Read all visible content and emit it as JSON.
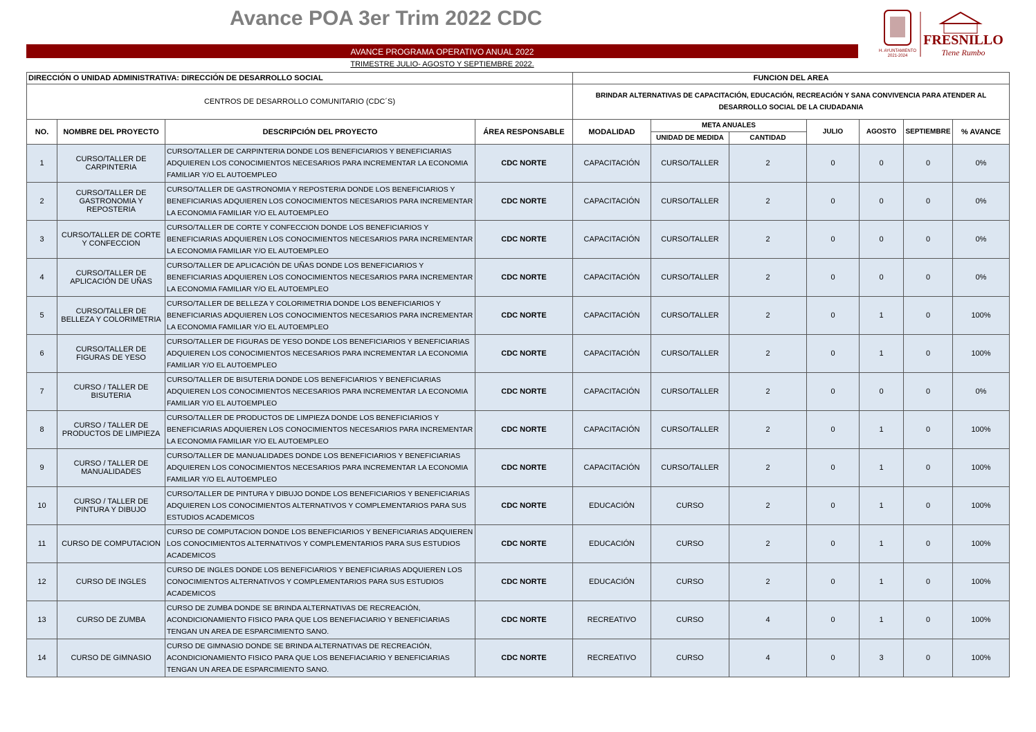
{
  "header": {
    "title": "Avance POA 3er Trim 2022 CDC",
    "logo": {
      "council": "H. AYUNTAMIENTO",
      "period": "2021-2024",
      "city": "FRESNILLO",
      "slogan": "Tiene Rumbo"
    },
    "banner": "AVANCE PROGRAMA OPERATIVO ANUAL 2022",
    "subtitle": "TRIMESTRE JULIO- AGOSTO Y SEPTIEMBRE 2022."
  },
  "info": {
    "direction": "DIRECCIÓN O UNIDAD ADMINISTRATIVA: DIRECCIÓN DE DESARROLLO SOCIAL",
    "function_label": "FUNCION DEL AREA",
    "program": "CENTROS DE DESARROLLO COMUNITARIO (CDC´S)",
    "function": "BRINDAR ALTERNATIVAS DE CAPACITACIÓN, EDUCACIÓN, RECREACIÓN Y SANA CONVIVENCIA PARA ATENDER AL DESARROLLO SOCIAL DE LA CIUDADANIA"
  },
  "table": {
    "columns": {
      "no": "NO.",
      "name": "NOMBRE DEL PROYECTO",
      "description": "DESCRIPCIÓN DEL PROYECTO",
      "area": "ÁREA RESPONSABLE",
      "mode": "MODALIDAD",
      "goals": "META ANUALES",
      "unit": "UNIDAD DE MEDIDA",
      "quantity": "CANTIDAD",
      "july": "JULIO",
      "august": "AGOSTO",
      "september": "SEPTIEMBRE",
      "progress": "% AVANCE"
    },
    "rows": [
      {
        "no": 1,
        "name": "CURSO/TALLER  DE CARPINTERIA",
        "description": "CURSO/TALLER DE CARPINTERIA DONDE LOS BENEFICIARIOS Y BENEFICIARIAS ADQUIEREN LOS CONOCIMIENTOS NECESARIOS PARA INCREMENTAR LA ECONOMIA FAMILIAR Y/O EL AUTOEMPLEO",
        "area": "CDC NORTE",
        "mode": "CAPACITACIÓN",
        "unit": "CURSO/TALLER",
        "quantity": 2,
        "july": 0,
        "august": 0,
        "september": 0,
        "progress": "0%"
      },
      {
        "no": 2,
        "name": "CURSO/TALLER  DE GASTRONOMIA Y REPOSTERIA",
        "description": "CURSO/TALLER DE GASTRONOMIA  Y REPOSTERIA DONDE LOS BENEFICIARIOS Y BENEFICIARIAS ADQUIEREN LOS CONOCIMIENTOS NECESARIOS PARA INCREMENTAR LA ECONOMIA FAMILIAR Y/O EL AUTOEMPLEO",
        "area": "CDC NORTE",
        "mode": "CAPACITACIÓN",
        "unit": "CURSO/TALLER",
        "quantity": 2,
        "july": 0,
        "august": 0,
        "september": 0,
        "progress": "0%"
      },
      {
        "no": 3,
        "name": "CURSO/TALLER  DE CORTE Y CONFECCION",
        "description": "CURSO/TALLER DE CORTE Y CONFECCION DONDE LOS BENEFICIARIOS Y BENEFICIARIAS ADQUIEREN LOS CONOCIMIENTOS NECESARIOS PARA INCREMENTAR LA ECONOMIA FAMILIAR Y/O EL AUTOEMPLEO",
        "area": "CDC NORTE",
        "mode": "CAPACITACIÓN",
        "unit": "CURSO/TALLER",
        "quantity": 2,
        "july": 0,
        "august": 0,
        "september": 0,
        "progress": "0%"
      },
      {
        "no": 4,
        "name": "CURSO/TALLER  DE APLICACIÓN DE UÑAS",
        "description": "CURSO/TALLER DE APLICACIÓN DE UÑAS DONDE LOS BENEFICIARIOS Y BENEFICIARIAS ADQUIEREN LOS CONOCIMIENTOS NECESARIOS PARA INCREMENTAR LA ECONOMIA FAMILIAR Y/O EL AUTOEMPLEO",
        "area": "CDC NORTE",
        "mode": "CAPACITACIÓN",
        "unit": "CURSO/TALLER",
        "quantity": 2,
        "july": 0,
        "august": 0,
        "september": 0,
        "progress": "0%"
      },
      {
        "no": 5,
        "name": "CURSO/TALLER  DE BELLEZA Y COLORIMETRIA",
        "description": "CURSO/TALLER DE BELLEZA Y COLORIMETRIA DONDE LOS BENEFICIARIOS Y BENEFICIARIAS ADQUIEREN LOS CONOCIMIENTOS NECESARIOS PARA INCREMENTAR LA ECONOMIA FAMILIAR Y/O EL AUTOEMPLEO",
        "area": "CDC NORTE",
        "mode": "CAPACITACIÓN",
        "unit": "CURSO/TALLER",
        "quantity": 2,
        "july": 0,
        "august": 1,
        "september": 0,
        "progress": "100%"
      },
      {
        "no": 6,
        "name": "CURSO/TALLER  DE FIGURAS DE YESO",
        "description": "CURSO/TALLER DE FIGURAS DE YESO DONDE LOS BENEFICIARIOS Y BENEFICIARIAS ADQUIEREN LOS CONOCIMIENTOS NECESARIOS PARA INCREMENTAR LA ECONOMIA FAMILIAR Y/O EL AUTOEMPLEO",
        "area": "CDC NORTE",
        "mode": "CAPACITACIÓN",
        "unit": "CURSO/TALLER",
        "quantity": 2,
        "july": 0,
        "august": 1,
        "september": 0,
        "progress": "100%"
      },
      {
        "no": 7,
        "name": "CURSO / TALLER DE BISUTERIA",
        "description": "CURSO/TALLER DE BISUTERIA DONDE LOS BENEFICIARIOS Y BENEFICIARIAS ADQUIEREN LOS CONOCIMIENTOS NECESARIOS PARA INCREMENTAR LA ECONOMIA FAMILIAR Y/O EL AUTOEMPLEO",
        "area": "CDC NORTE",
        "mode": "CAPACITACIÓN",
        "unit": "CURSO/TALLER",
        "quantity": 2,
        "july": 0,
        "august": 0,
        "september": 0,
        "progress": "0%"
      },
      {
        "no": 8,
        "name": "CURSO / TALLER DE PRODUCTOS DE LIMPIEZA",
        "description": "CURSO/TALLER DE PRODUCTOS DE LIMPIEZA DONDE LOS BENEFICIARIOS Y BENEFICIARIAS ADQUIEREN LOS CONOCIMIENTOS NECESARIOS PARA INCREMENTAR LA ECONOMIA FAMILIAR Y/O EL AUTOEMPLEO",
        "area": "CDC NORTE",
        "mode": "CAPACITACIÓN",
        "unit": "CURSO/TALLER",
        "quantity": 2,
        "july": 0,
        "august": 1,
        "september": 0,
        "progress": "100%"
      },
      {
        "no": 9,
        "name": "CURSO / TALLER DE MANUALIDADES",
        "description": "CURSO/TALLER DE MANUALIDADES DONDE LOS BENEFICIARIOS Y BENEFICIARIAS ADQUIEREN LOS CONOCIMIENTOS NECESARIOS PARA INCREMENTAR LA ECONOMIA FAMILIAR Y/O EL AUTOEMPLEO",
        "area": "CDC NORTE",
        "mode": "CAPACITACIÓN",
        "unit": "CURSO/TALLER",
        "quantity": 2,
        "july": 0,
        "august": 1,
        "september": 0,
        "progress": "100%"
      },
      {
        "no": 10,
        "name": "CURSO / TALLER DE PINTURA Y DIBUJO",
        "description": "CURSO/TALLER DE PINTURA Y DIBUJO DONDE LOS BENEFICIARIOS Y BENEFICIARIAS ADQUIEREN LOS CONOCIMIENTOS ALTERNATIVOS Y COMPLEMENTARIOS PARA SUS ESTUDIOS ACADEMICOS",
        "area": "CDC NORTE",
        "mode": "EDUCACIÓN",
        "unit": "CURSO",
        "quantity": 2,
        "july": 0,
        "august": 1,
        "september": 0,
        "progress": "100%"
      },
      {
        "no": 11,
        "name": "CURSO DE COMPUTACION",
        "description": "CURSO DE COMPUTACION DONDE LOS BENEFICIARIOS Y BENEFICIARIAS ADQUIEREN LOS CONOCIMIENTOS ALTERNATIVOS Y COMPLEMENTARIOS PARA SUS ESTUDIOS ACADEMICOS",
        "area": "CDC NORTE",
        "mode": "EDUCACIÓN",
        "unit": "CURSO",
        "quantity": 2,
        "july": 0,
        "august": 1,
        "september": 0,
        "progress": "100%"
      },
      {
        "no": 12,
        "name": "CURSO DE INGLES",
        "description": "CURSO DE INGLES DONDE LOS BENEFICIARIOS Y BENEFICIARIAS ADQUIEREN LOS CONOCIMIENTOS ALTERNATIVOS Y COMPLEMENTARIOS PARA SUS ESTUDIOS ACADEMICOS",
        "area": "CDC NORTE",
        "mode": "EDUCACIÓN",
        "unit": "CURSO",
        "quantity": 2,
        "july": 0,
        "august": 1,
        "september": 0,
        "progress": "100%"
      },
      {
        "no": 13,
        "name": "CURSO DE ZUMBA",
        "description": "CURSO DE ZUMBA DONDE SE BRINDA ALTERNATIVAS DE RECREACIÓN, ACONDICIONAMIENTO FISICO PARA QUE LOS BENEFIACIARIO Y BENEFICIARIAS TENGAN UN AREA DE ESPARCIMIENTO SANO.",
        "area": "CDC NORTE",
        "mode": "RECREATIVO",
        "unit": "CURSO",
        "quantity": 4,
        "july": 0,
        "august": 1,
        "september": 0,
        "progress": "100%"
      },
      {
        "no": 14,
        "name": "CURSO DE GIMNASIO",
        "description": "CURSO DE GIMNASIO DONDE SE BRINDA ALTERNATIVAS DE RECREACIÓN, ACONDICIONAMIENTO FISICO PARA QUE LOS BENEFIACIARIO Y BENEFICIARIAS TENGAN UN AREA DE ESPARCIMIENTO SANO.",
        "area": "CDC NORTE",
        "mode": "RECREATIVO",
        "unit": "CURSO",
        "quantity": 4,
        "july": 0,
        "august": 3,
        "september": 0,
        "progress": "100%"
      }
    ]
  }
}
